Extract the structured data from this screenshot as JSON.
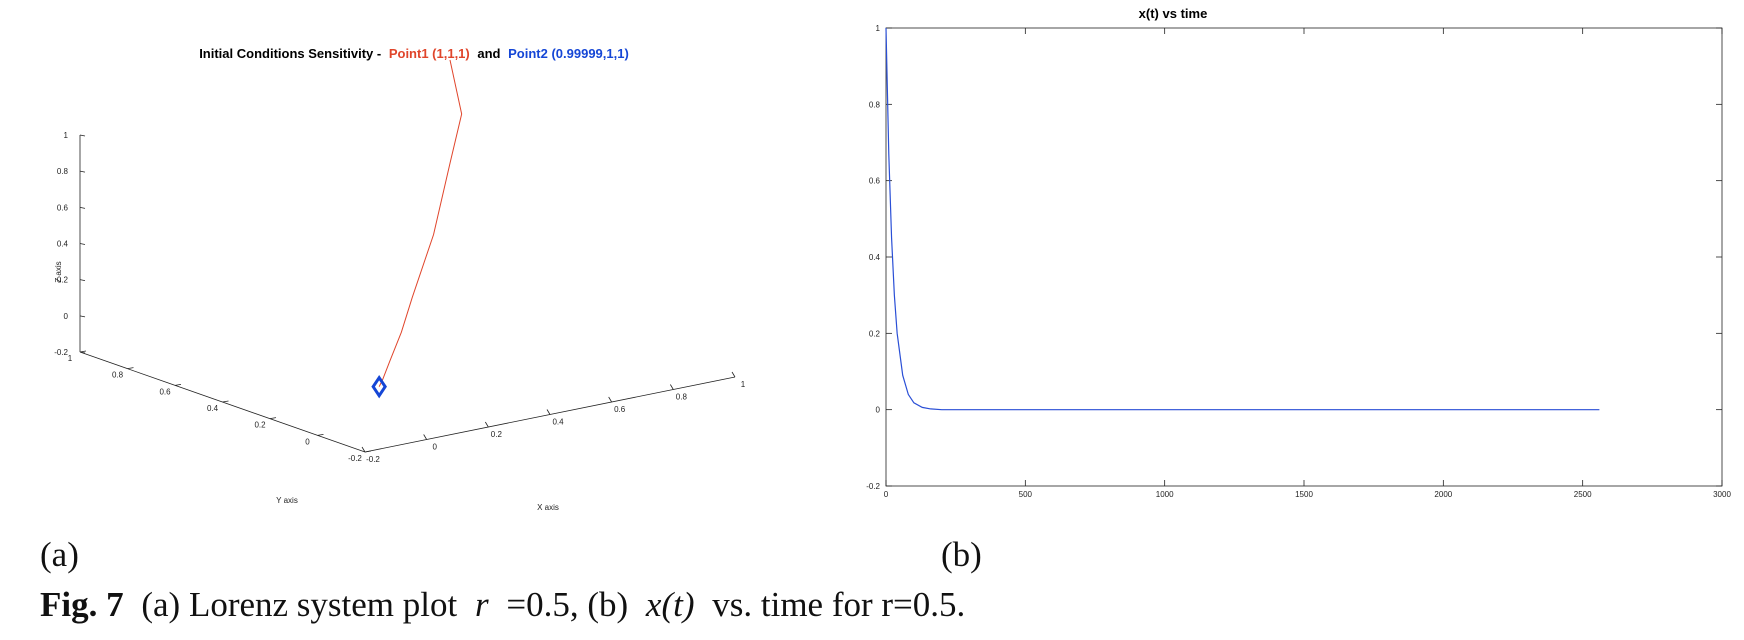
{
  "chart_data": [
    {
      "type": "line3d",
      "title_prefix": "Initial Conditions Sensitivity -",
      "title_joiner": "and",
      "xlabel": "X axis",
      "ylabel": "Y axis",
      "zlabel": "Z axis",
      "xlim": [
        -0.2,
        1
      ],
      "ylim": [
        -0.2,
        1
      ],
      "zlim": [
        -0.2,
        1
      ],
      "xticks": [
        -0.2,
        0,
        0.2,
        0.4,
        0.6,
        0.8,
        1
      ],
      "yticks": [
        -0.2,
        0,
        0.2,
        0.4,
        0.6,
        0.8,
        1
      ],
      "zticks": [
        -0.2,
        0,
        0.2,
        0.4,
        0.6,
        0.8,
        1
      ],
      "series": [
        {
          "name": "Point1 (1,1,1)",
          "color": "#e0452b",
          "x": [
            1,
            0.93,
            0.8,
            0.6,
            0.4,
            0.28,
            0.15,
            0.05,
            0
          ],
          "y": [
            1,
            0.86,
            0.74,
            0.55,
            0.38,
            0.27,
            0.15,
            0.05,
            0
          ],
          "z": [
            1,
            0.79,
            0.62,
            0.38,
            0.18,
            0.08,
            0.02,
            0,
            0
          ]
        },
        {
          "name": "Point2 (0.99999,1,1)",
          "color": "#1546d6",
          "marker": "diamond",
          "x": [
            0
          ],
          "y": [
            0
          ],
          "z": [
            0
          ]
        }
      ]
    },
    {
      "type": "line",
      "title": "x(t) vs time",
      "x": [
        0,
        10,
        20,
        30,
        40,
        60,
        80,
        100,
        130,
        160,
        200,
        300,
        1000,
        2000,
        2560
      ],
      "series": [
        {
          "color": "#2a4fd6",
          "values": [
            1,
            0.67,
            0.45,
            0.3,
            0.2,
            0.09,
            0.04,
            0.018,
            0.006,
            0.002,
            0,
            0,
            0,
            0,
            0
          ]
        }
      ],
      "xlim": [
        0,
        3000
      ],
      "ylim": [
        -0.2,
        1
      ],
      "xticks": [
        0,
        500,
        1000,
        1500,
        2000,
        2500,
        3000
      ],
      "yticks": [
        -0.2,
        0,
        0.2,
        0.4,
        0.6,
        0.8,
        1
      ],
      "grid": false
    }
  ],
  "panel_labels": [
    "(a)",
    "(b)"
  ],
  "caption": {
    "label": "Fig. 7",
    "parts": [
      "(a) Lorenz system plot",
      "r",
      "=0.5, (b)",
      "x(t)",
      "vs. time for r=0.5."
    ]
  }
}
